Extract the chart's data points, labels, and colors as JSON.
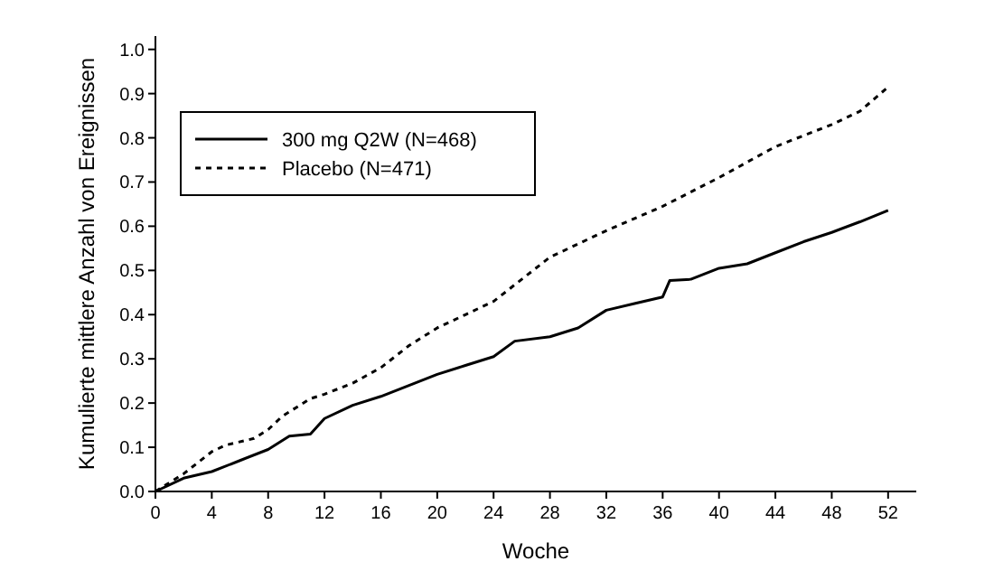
{
  "chart_data": {
    "type": "line",
    "xlabel": "Woche",
    "ylabel": "Kumulierte mittlere Anzahl von Ereignissen",
    "xlim": [
      0,
      54
    ],
    "ylim": [
      0,
      1.03
    ],
    "xticks": [
      0,
      4,
      8,
      12,
      16,
      20,
      24,
      28,
      32,
      36,
      40,
      44,
      48,
      52
    ],
    "yticks": [
      {
        "value": 0,
        "label": "0.0"
      },
      {
        "value": 0.1,
        "label": "0.1"
      },
      {
        "value": 0.2,
        "label": "0.2"
      },
      {
        "value": 0.3,
        "label": "0.3"
      },
      {
        "value": 0.4,
        "label": "0.4"
      },
      {
        "value": 0.5,
        "label": "0.5"
      },
      {
        "value": 0.6,
        "label": "0.6"
      },
      {
        "value": 0.7,
        "label": "0.7"
      },
      {
        "value": 0.8,
        "label": "0.8"
      },
      {
        "value": 0.9,
        "label": "0.9"
      },
      {
        "value": 1.0,
        "label": "1.0"
      }
    ],
    "legend": "top left",
    "grid": false,
    "marker": "none",
    "series": [
      {
        "name": "300 mg Q2W (N=468)",
        "color": "#000000",
        "line_style": "solid",
        "x": [
          0,
          2,
          4,
          6,
          8,
          9.5,
          11,
          12,
          14,
          16,
          18,
          20,
          22,
          24,
          25.5,
          28,
          30,
          32,
          34,
          36,
          36.5,
          38,
          40,
          42,
          44,
          46,
          48,
          50,
          52
        ],
        "values": [
          0,
          0.03,
          0.045,
          0.07,
          0.095,
          0.125,
          0.13,
          0.165,
          0.195,
          0.215,
          0.24,
          0.265,
          0.285,
          0.305,
          0.34,
          0.35,
          0.37,
          0.41,
          0.425,
          0.44,
          0.477,
          0.48,
          0.505,
          0.515,
          0.54,
          0.565,
          0.586,
          0.61,
          0.636
        ]
      },
      {
        "name": "Placebo (N=471)",
        "color": "#000000",
        "line_style": "dashed",
        "x": [
          0,
          2,
          4,
          5,
          7,
          8,
          9,
          11,
          12,
          14,
          16,
          18,
          20,
          22,
          24,
          26,
          28,
          32,
          36,
          40,
          44,
          48,
          50,
          52
        ],
        "values": [
          0,
          0.04,
          0.09,
          0.105,
          0.12,
          0.14,
          0.17,
          0.21,
          0.22,
          0.245,
          0.28,
          0.33,
          0.37,
          0.4,
          0.43,
          0.48,
          0.53,
          0.59,
          0.645,
          0.71,
          0.78,
          0.83,
          0.86,
          0.915
        ]
      }
    ]
  }
}
